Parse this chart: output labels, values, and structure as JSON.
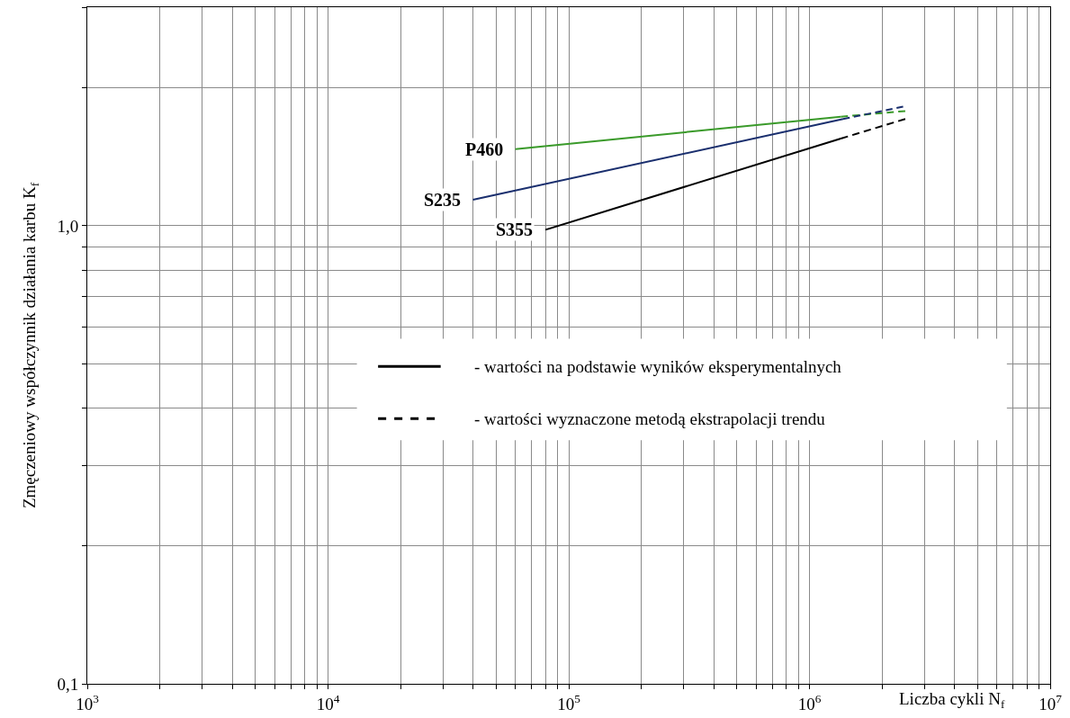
{
  "chart_data": {
    "type": "line",
    "xlabel": "Liczba cykli N$_{f}$",
    "ylabel": "Zmęczeniowy współczynnik działania karbu K$_{f}$",
    "log": "xy",
    "grid": true,
    "legend": false,
    "marker": "none",
    "xlim": [
      1000,
      10000000
    ],
    "xticks": [
      {
        "value": 1000,
        "label": "10$^{3}$"
      },
      {
        "value": 2000,
        "label": null
      },
      {
        "value": 3000,
        "label": null
      },
      {
        "value": 4000,
        "label": null
      },
      {
        "value": 5000,
        "label": null
      },
      {
        "value": 6000,
        "label": null
      },
      {
        "value": 7000,
        "label": null
      },
      {
        "value": 8000,
        "label": null
      },
      {
        "value": 9000,
        "label": null
      },
      {
        "value": 10000,
        "label": "10$^{4}$"
      },
      {
        "value": 20000,
        "label": null
      },
      {
        "value": 30000,
        "label": null
      },
      {
        "value": 40000,
        "label": null
      },
      {
        "value": 50000,
        "label": null
      },
      {
        "value": 60000,
        "label": null
      },
      {
        "value": 70000,
        "label": null
      },
      {
        "value": 80000,
        "label": null
      },
      {
        "value": 90000,
        "label": null
      },
      {
        "value": 100000,
        "label": "10$^{5}$"
      },
      {
        "value": 200000,
        "label": null
      },
      {
        "value": 300000,
        "label": null
      },
      {
        "value": 400000,
        "label": null
      },
      {
        "value": 500000,
        "label": null
      },
      {
        "value": 600000,
        "label": null
      },
      {
        "value": 700000,
        "label": null
      },
      {
        "value": 800000,
        "label": null
      },
      {
        "value": 900000,
        "label": null
      },
      {
        "value": 1000000,
        "label": "10$^{6}$"
      },
      {
        "value": 2000000,
        "label": null
      },
      {
        "value": 3000000,
        "label": null
      },
      {
        "value": 4000000,
        "label": null
      },
      {
        "value": 5000000,
        "label": null
      },
      {
        "value": 6000000,
        "label": null
      },
      {
        "value": 7000000,
        "label": null
      },
      {
        "value": 8000000,
        "label": null
      },
      {
        "value": 9000000,
        "label": null
      },
      {
        "value": 10000000,
        "label": "10$^{7}$"
      }
    ],
    "ylim": [
      0.1,
      3
    ],
    "yticks": [
      {
        "value": 0.1,
        "label": "0,1"
      },
      {
        "value": 0.2,
        "label": null
      },
      {
        "value": 0.3,
        "label": null
      },
      {
        "value": 0.4,
        "label": null
      },
      {
        "value": 0.5,
        "label": null
      },
      {
        "value": 0.6,
        "label": null
      },
      {
        "value": 0.7,
        "label": null
      },
      {
        "value": 0.8,
        "label": null
      },
      {
        "value": 0.9,
        "label": null
      },
      {
        "value": 1,
        "label": "1,0"
      },
      {
        "value": 2,
        "label": null
      },
      {
        "value": 3,
        "label": null
      }
    ],
    "series": [
      {
        "name": "P460",
        "color": "#3a9a2a",
        "line_style": "solid",
        "x": [
          60000,
          1350000
        ],
        "values": [
          1.47,
          1.73
        ]
      },
      {
        "color": "#3a9a2a",
        "line_style": "dashed",
        "x": [
          1350000,
          2500000
        ],
        "values": [
          1.73,
          1.78
        ]
      },
      {
        "name": "S235",
        "color": "#1a2f6e",
        "line_style": "solid",
        "x": [
          40000,
          1380000
        ],
        "values": [
          1.14,
          1.71
        ]
      },
      {
        "color": "#1a2f6e",
        "line_style": "dashed",
        "x": [
          1380000,
          2450000
        ],
        "values": [
          1.71,
          1.82
        ]
      },
      {
        "name": "S355",
        "color": "#000000",
        "line_style": "solid",
        "x": [
          80000,
          1350000
        ],
        "values": [
          0.98,
          1.55
        ]
      },
      {
        "color": "#000000",
        "line_style": "dashed",
        "x": [
          1350000,
          2500000
        ],
        "values": [
          1.55,
          1.71
        ]
      }
    ],
    "annotations": [
      "- wartości na podstawie wyników eksperymentalnych",
      "- wartości wyznaczone metodą ekstrapolacji trendu"
    ]
  }
}
